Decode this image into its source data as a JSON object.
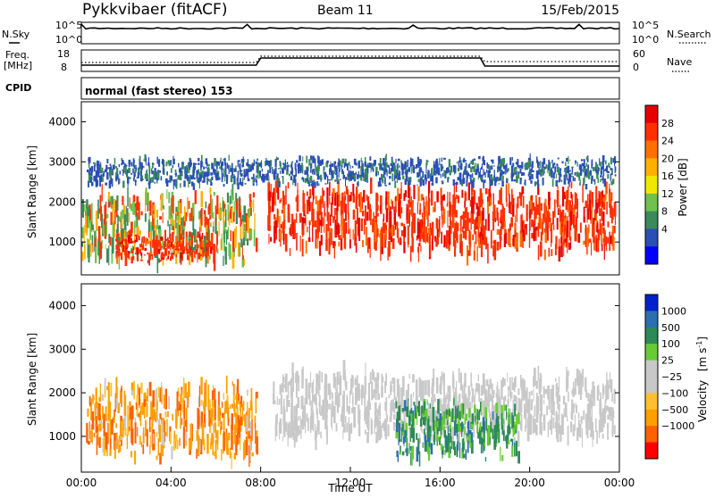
{
  "header": {
    "station": "Pykkvibaer (fitACF)",
    "beam": "Beam 11",
    "date": "15/Feb/2015"
  },
  "sky_panel": {
    "left_label": "N.Sky",
    "right_label": "N.Search",
    "left_ticks": [
      "10^5",
      "10^0"
    ],
    "right_ticks": [
      "10^5",
      "10^0"
    ]
  },
  "freq_panel": {
    "left_label_1": "Freq.",
    "left_label_2": "[MHz]",
    "right_label": "Nave",
    "left_ticks": [
      "18",
      "8"
    ],
    "right_ticks": [
      "60",
      "0"
    ]
  },
  "cpid_panel": {
    "label": "CPID",
    "text": "normal (fast stereo) 153"
  },
  "colors": {
    "power": [
      "#0000ff",
      "#2a4fb4",
      "#3b8a5a",
      "#6fc24c",
      "#f0e800",
      "#ffb000",
      "#ff7000",
      "#ff3000",
      "#e80000"
    ],
    "velocity": [
      "#ff0000",
      "#ff6000",
      "#ff9f00",
      "#ffc030",
      "#c8c8c8",
      "#c8c8c8",
      "#66cc33",
      "#2c8a56",
      "#2a6fb0",
      "#0022cc"
    ],
    "ground_scatter": "#c8c8c8"
  },
  "chart_data": [
    {
      "type": "heatmap",
      "title": "",
      "ylabel": "Slant Range [km]",
      "ylim": [
        180,
        4500
      ],
      "yticks": [
        "1000",
        "2000",
        "3000",
        "4000"
      ],
      "xlim": [
        "00:00",
        "24:00"
      ],
      "colorbar": {
        "label": "Power [dB]",
        "ticks": [
          "4",
          "8",
          "12",
          "16",
          "20",
          "24",
          "28"
        ],
        "range": [
          0,
          32
        ]
      },
      "echo_regions": [
        {
          "t_start": 0.0,
          "t_end": 7.8,
          "range_low": 500,
          "range_high": 2200,
          "level": "moderate-high"
        },
        {
          "t_start": 1.5,
          "t_end": 5.8,
          "range_low": 500,
          "range_high": 1200,
          "level": "high"
        },
        {
          "t_start": 8.3,
          "t_end": 23.8,
          "range_low": 700,
          "range_high": 2400,
          "level": "high"
        },
        {
          "t_start": 0.2,
          "t_end": 23.8,
          "range_low": 2400,
          "range_high": 3100,
          "level": "low"
        }
      ]
    },
    {
      "type": "heatmap",
      "title": "",
      "ylabel": "Slant Range [km]",
      "xlabel": "Time UT",
      "ylim": [
        180,
        4500
      ],
      "yticks": [
        "1000",
        "2000",
        "3000",
        "4000"
      ],
      "xticks": [
        "00:00",
        "04:00",
        "08:00",
        "12:00",
        "16:00",
        "20:00",
        "00:00"
      ],
      "colorbar": {
        "label": "Velocity",
        "label_unit": "[m s",
        "label_exp": "-1",
        "label_end": "]",
        "ticks": [
          "1000",
          "500",
          "100",
          "25",
          "−25",
          "−100",
          "−500",
          "−1000"
        ]
      },
      "echo_regions": [
        {
          "t_start": 0.2,
          "t_end": 7.8,
          "range_low": 500,
          "range_high": 2200,
          "level": "negative (away)"
        },
        {
          "t_start": 8.5,
          "t_end": 23.8,
          "range_low": 900,
          "range_high": 2500,
          "level": "ground scatter"
        },
        {
          "t_start": 14.0,
          "t_end": 19.5,
          "range_low": 500,
          "range_high": 1800,
          "level": "positive (toward)"
        }
      ]
    }
  ]
}
